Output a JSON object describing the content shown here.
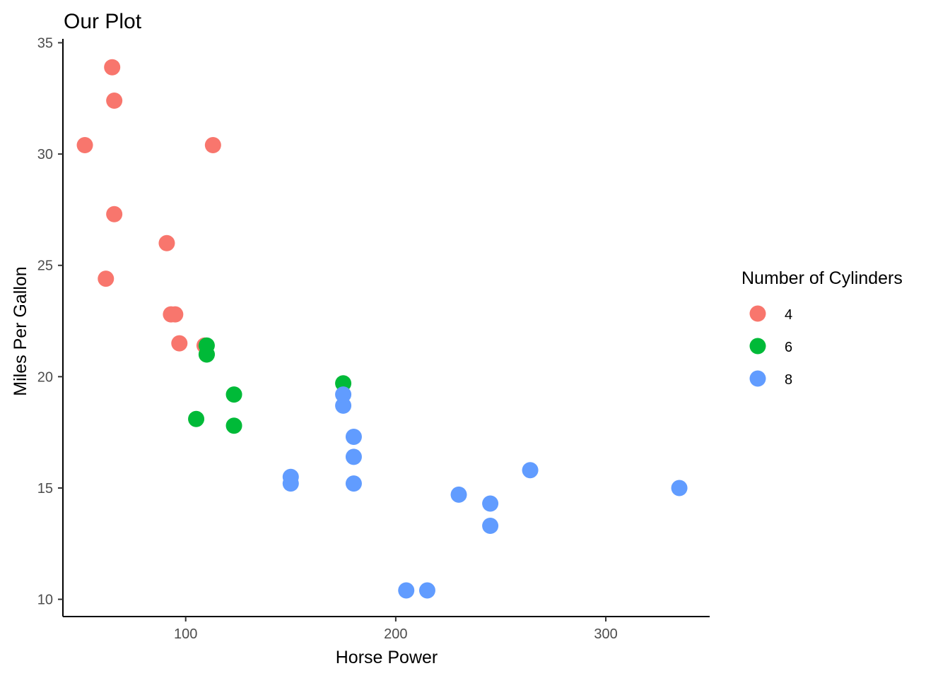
{
  "chart_data": {
    "type": "scatter",
    "title": "Our Plot",
    "xlabel": "Horse Power",
    "ylabel": "Miles Per Gallon",
    "xlim": [
      41.55,
      349.45
    ],
    "ylim": [
      9.225,
      35.175
    ],
    "xticks": [
      {
        "value": 100,
        "label": "100"
      },
      {
        "value": 200,
        "label": "200"
      },
      {
        "value": 300,
        "label": "300"
      }
    ],
    "yticks": [
      {
        "value": 10,
        "label": "10"
      },
      {
        "value": 15,
        "label": "15"
      },
      {
        "value": 20,
        "label": "20"
      },
      {
        "value": 25,
        "label": "25"
      },
      {
        "value": 30,
        "label": "30"
      },
      {
        "value": 35,
        "label": "35"
      }
    ],
    "grid": false,
    "legend": {
      "title": "Number of Cylinders",
      "position": "right"
    },
    "series": [
      {
        "name": "4",
        "color": "#F8766D",
        "points": [
          {
            "x": 93,
            "y": 22.8
          },
          {
            "x": 62,
            "y": 24.4
          },
          {
            "x": 95,
            "y": 22.8
          },
          {
            "x": 66,
            "y": 32.4
          },
          {
            "x": 52,
            "y": 30.4
          },
          {
            "x": 65,
            "y": 33.9
          },
          {
            "x": 97,
            "y": 21.5
          },
          {
            "x": 66,
            "y": 27.3
          },
          {
            "x": 91,
            "y": 26.0
          },
          {
            "x": 113,
            "y": 30.4
          },
          {
            "x": 109,
            "y": 21.4
          }
        ]
      },
      {
        "name": "6",
        "color": "#00BA38",
        "points": [
          {
            "x": 110,
            "y": 21.0
          },
          {
            "x": 110,
            "y": 21.0
          },
          {
            "x": 110,
            "y": 21.4
          },
          {
            "x": 105,
            "y": 18.1
          },
          {
            "x": 123,
            "y": 19.2
          },
          {
            "x": 123,
            "y": 17.8
          },
          {
            "x": 175,
            "y": 19.7
          }
        ]
      },
      {
        "name": "8",
        "color": "#619CFF",
        "points": [
          {
            "x": 175,
            "y": 18.7
          },
          {
            "x": 245,
            "y": 14.3
          },
          {
            "x": 180,
            "y": 16.4
          },
          {
            "x": 180,
            "y": 17.3
          },
          {
            "x": 180,
            "y": 15.2
          },
          {
            "x": 205,
            "y": 10.4
          },
          {
            "x": 215,
            "y": 10.4
          },
          {
            "x": 230,
            "y": 14.7
          },
          {
            "x": 150,
            "y": 15.5
          },
          {
            "x": 150,
            "y": 15.2
          },
          {
            "x": 245,
            "y": 13.3
          },
          {
            "x": 175,
            "y": 19.2
          },
          {
            "x": 264,
            "y": 15.8
          },
          {
            "x": 335,
            "y": 15.0
          }
        ]
      }
    ]
  }
}
